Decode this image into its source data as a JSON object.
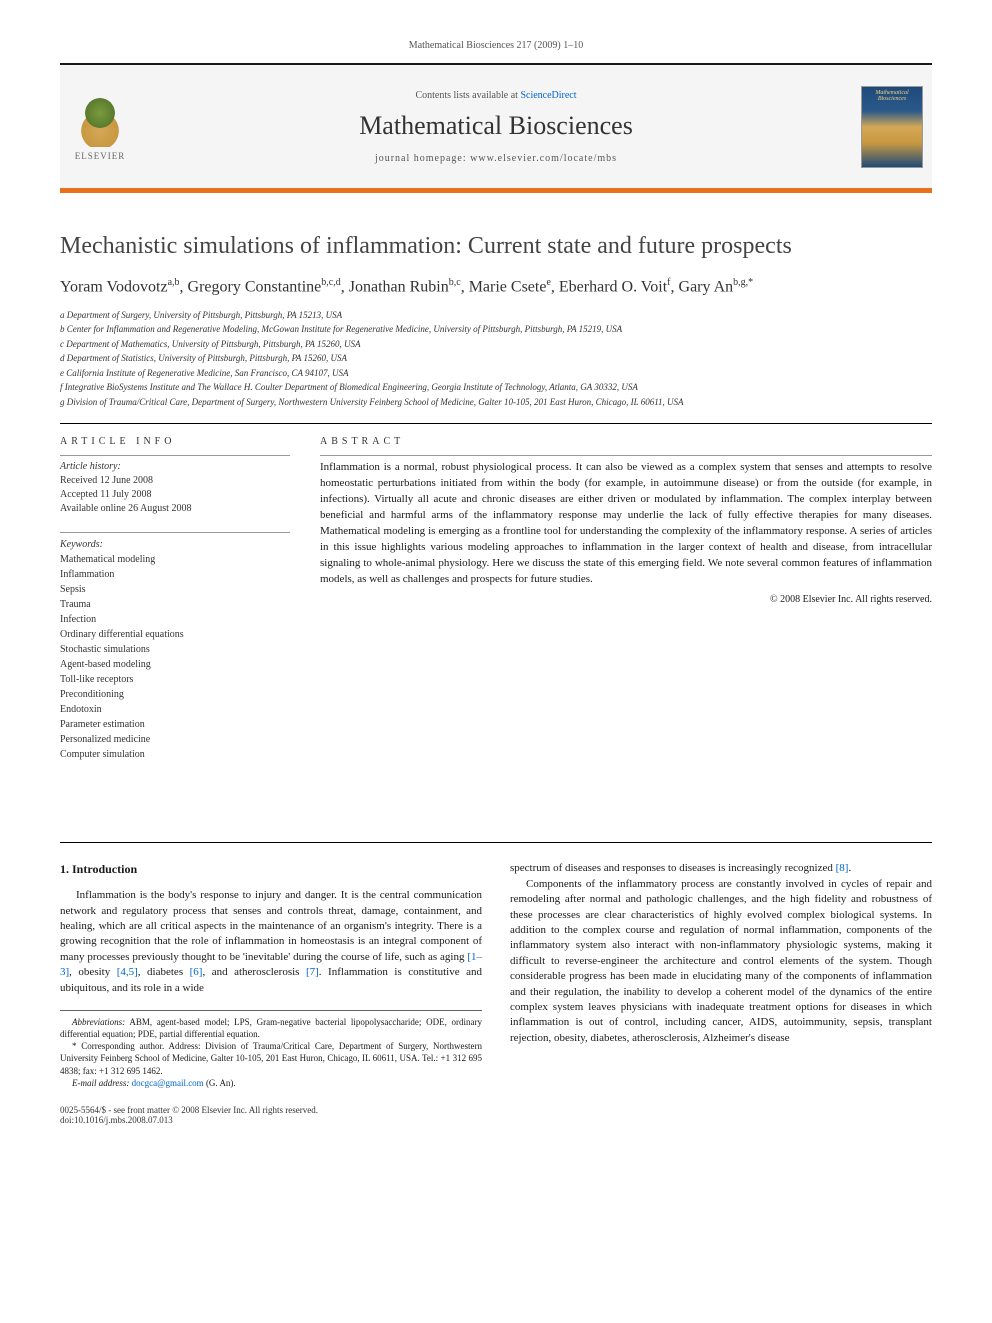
{
  "citation": "Mathematical Biosciences 217 (2009) 1–10",
  "header": {
    "publisher_label": "ELSEVIER",
    "contents_prefix": "Contents lists available at ",
    "contents_link": "ScienceDirect",
    "journal_name": "Mathematical Biosciences",
    "homepage_prefix": "journal homepage: ",
    "homepage_url": "www.elsevier.com/locate/mbs"
  },
  "title": "Mechanistic simulations of inflammation: Current state and future prospects",
  "authors": "Yoram Vodovotz a,b, Gregory Constantine b,c,d, Jonathan Rubin b,c, Marie Csete e, Eberhard O. Voit f, Gary An b,g,*",
  "affiliations": [
    "a Department of Surgery, University of Pittsburgh, Pittsburgh, PA 15213, USA",
    "b Center for Inflammation and Regenerative Modeling, McGowan Institute for Regenerative Medicine, University of Pittsburgh, Pittsburgh, PA 15219, USA",
    "c Department of Mathematics, University of Pittsburgh, Pittsburgh, PA 15260, USA",
    "d Department of Statistics, University of Pittsburgh, Pittsburgh, PA 15260, USA",
    "e California Institute of Regenerative Medicine, San Francisco, CA 94107, USA",
    "f Integrative BioSystems Institute and The Wallace H. Coulter Department of Biomedical Engineering, Georgia Institute of Technology, Atlanta, GA 30332, USA",
    "g Division of Trauma/Critical Care, Department of Surgery, Northwestern University Feinberg School of Medicine, Galter 10-105, 201 East Huron, Chicago, IL 60611, USA"
  ],
  "info_label": "ARTICLE INFO",
  "abstract_label": "ABSTRACT",
  "history": {
    "title": "Article history:",
    "received": "Received 12 June 2008",
    "accepted": "Accepted 11 July 2008",
    "online": "Available online 26 August 2008"
  },
  "keywords_title": "Keywords:",
  "keywords": [
    "Mathematical modeling",
    "Inflammation",
    "Sepsis",
    "Trauma",
    "Infection",
    "Ordinary differential equations",
    "Stochastic simulations",
    "Agent-based modeling",
    "Toll-like receptors",
    "Preconditioning",
    "Endotoxin",
    "Parameter estimation",
    "Personalized medicine",
    "Computer simulation"
  ],
  "abstract": "Inflammation is a normal, robust physiological process. It can also be viewed as a complex system that senses and attempts to resolve homeostatic perturbations initiated from within the body (for example, in autoimmune disease) or from the outside (for example, in infections). Virtually all acute and chronic diseases are either driven or modulated by inflammation. The complex interplay between beneficial and harmful arms of the inflammatory response may underlie the lack of fully effective therapies for many diseases. Mathematical modeling is emerging as a frontline tool for understanding the complexity of the inflammatory response. A series of articles in this issue highlights various modeling approaches to inflammation in the larger context of health and disease, from intracellular signaling to whole-animal physiology. Here we discuss the state of this emerging field. We note several common features of inflammation models, as well as challenges and prospects for future studies.",
  "copyright": "© 2008 Elsevier Inc. All rights reserved.",
  "section1": {
    "heading": "1. Introduction",
    "p1a": "Inflammation is the body's response to injury and danger. It is the central communication network and regulatory process that senses and controls threat, damage, containment, and healing, which are all critical aspects in the maintenance of an organism's integrity. There is a growing recognition that the role of inflammation in homeostasis is an integral component of many processes previously thought to be 'inevitable' during the course of life, such as aging ",
    "r1": "[1–3]",
    "p1b": ", obesity ",
    "r2": "[4,5]",
    "p1c": ", diabetes ",
    "r3": "[6]",
    "p1d": ", and atherosclerosis ",
    "r4": "[7]",
    "p1e": ". Inflammation is constitutive and ubiquitous, and its role in a wide ",
    "p2a": "spectrum of diseases and responses to diseases is increasingly recognized ",
    "r5": "[8]",
    "p2b": ".",
    "p3": "Components of the inflammatory process are constantly involved in cycles of repair and remodeling after normal and pathologic challenges, and the high fidelity and robustness of these processes are clear characteristics of highly evolved complex biological systems. In addition to the complex course and regulation of normal inflammation, components of the inflammatory system also interact with non-inflammatory physiologic systems, making it difficult to reverse-engineer the architecture and control elements of the system. Though considerable progress has been made in elucidating many of the components of inflammation and their regulation, the inability to develop a coherent model of the dynamics of the entire complex system leaves physicians with inadequate treatment options for diseases in which inflammation is out of control, including cancer, AIDS, autoimmunity, sepsis, transplant rejection, obesity, diabetes, atherosclerosis, Alzheimer's disease"
  },
  "footnotes": {
    "abbrev_label": "Abbreviations:",
    "abbrev": " ABM, agent-based model; LPS, Gram-negative bacterial lipopolysaccharide; ODE, ordinary differential equation; PDE, partial differential equation.",
    "corr_label": "* Corresponding author.",
    "corr": " Address: Division of Trauma/Critical Care, Department of Surgery, Northwestern University Feinberg School of Medicine, Galter 10-105, 201 East Huron, Chicago, IL 60611, USA. Tel.: +1 312 695 4838; fax: +1 312 695 1462.",
    "email_label": "E-mail address:",
    "email": "docgca@gmail.com",
    "email_suffix": " (G. An)."
  },
  "footer": {
    "left": "0025-5564/$ - see front matter © 2008 Elsevier Inc. All rights reserved.",
    "doi": "doi:10.1016/j.mbs.2008.07.013"
  },
  "colors": {
    "accent_orange": "#e9711c",
    "link_blue": "#0066cc",
    "text": "#1a1a1a",
    "muted": "#555555",
    "border": "#000000"
  }
}
